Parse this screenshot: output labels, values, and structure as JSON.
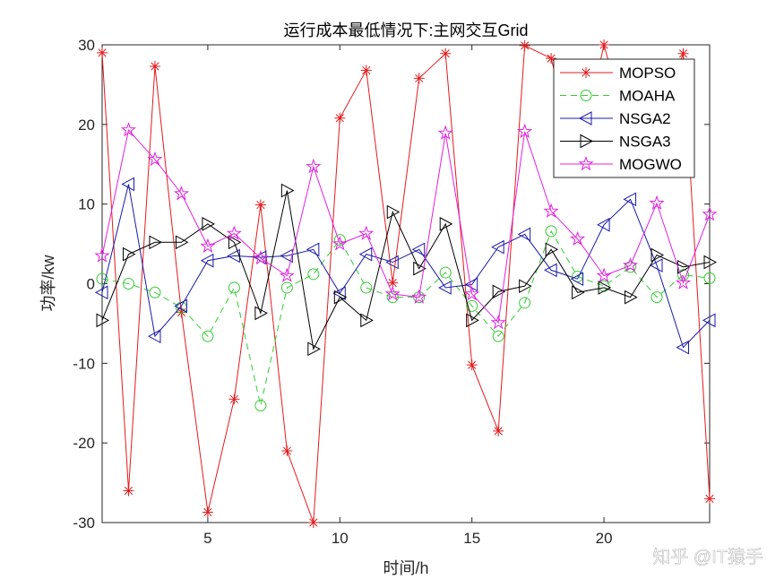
{
  "chart_data": {
    "type": "line",
    "title": "运行成本最低情况下:主网交互Grid",
    "xlabel": "时间/h",
    "ylabel": "功率/kw",
    "xlim": [
      1,
      24
    ],
    "ylim": [
      -30,
      30
    ],
    "xticks": [
      5,
      10,
      15,
      20
    ],
    "yticks": [
      -30,
      -20,
      -10,
      0,
      10,
      20,
      30
    ],
    "grid": false,
    "legend_position": "top-right",
    "x": [
      1,
      2,
      3,
      4,
      5,
      6,
      7,
      8,
      9,
      10,
      11,
      12,
      13,
      14,
      15,
      16,
      17,
      18,
      19,
      20,
      21,
      22,
      23,
      24
    ],
    "series": [
      {
        "name": "MOPSO",
        "color": "#e41a1c",
        "marker": "asterisk",
        "dash": "solid",
        "values": [
          29,
          -26,
          27.3,
          -3.6,
          -28.7,
          -14.5,
          9.9,
          -21,
          -30,
          20.8,
          26.8,
          0.1,
          25.8,
          28.9,
          -10.2,
          -18.5,
          29.9,
          28.3,
          15,
          30,
          18,
          20,
          28.9,
          -27
        ]
      },
      {
        "name": "MOAHA",
        "color": "#33cc33",
        "marker": "circle",
        "dash": "dashed",
        "values": [
          0.6,
          0,
          -1.1,
          -3.0,
          -6.6,
          -0.5,
          -15.3,
          -0.5,
          1.2,
          5.5,
          -0.5,
          -1.7,
          -1.7,
          1.4,
          -2.8,
          -6.6,
          -2.4,
          6.6,
          0.9,
          -0.3,
          2.1,
          -1.7,
          1.1,
          0.7
        ]
      },
      {
        "name": "NSGA2",
        "color": "#1a1aaa",
        "marker": "triangle-left",
        "dash": "solid",
        "values": [
          -1.1,
          12.5,
          -6.6,
          -2.8,
          2.9,
          3.5,
          3.3,
          3.5,
          4.3,
          -1.2,
          3.7,
          2.7,
          4.3,
          -0.5,
          -0.1,
          4.6,
          6.2,
          1.7,
          0.6,
          7.4,
          10.6,
          2.3,
          -8.0,
          -4.6
        ]
      },
      {
        "name": "NSGA3",
        "color": "#000000",
        "marker": "triangle-right",
        "dash": "solid",
        "values": [
          -4.6,
          3.7,
          5.2,
          5.2,
          7.5,
          5.2,
          -3.7,
          11.7,
          -8.2,
          -1.7,
          -4.6,
          9.0,
          1.9,
          7.5,
          -4.6,
          -1.0,
          -0.3,
          4.3,
          -1.1,
          -0.5,
          -1.7,
          3.6,
          2.1,
          2.7
        ]
      },
      {
        "name": "MOGWO",
        "color": "#e020e0",
        "marker": "pentagram",
        "dash": "solid",
        "values": [
          3.5,
          19.3,
          15.6,
          11.3,
          4.7,
          6.3,
          3.2,
          1.0,
          14.7,
          5.0,
          6.3,
          -1.3,
          -1.7,
          18.9,
          -1.3,
          -4.9,
          19.1,
          9.1,
          5.6,
          1.0,
          2.3,
          10.1,
          0.1,
          8.7
        ]
      }
    ]
  },
  "watermark": "知乎 @IT猿手"
}
